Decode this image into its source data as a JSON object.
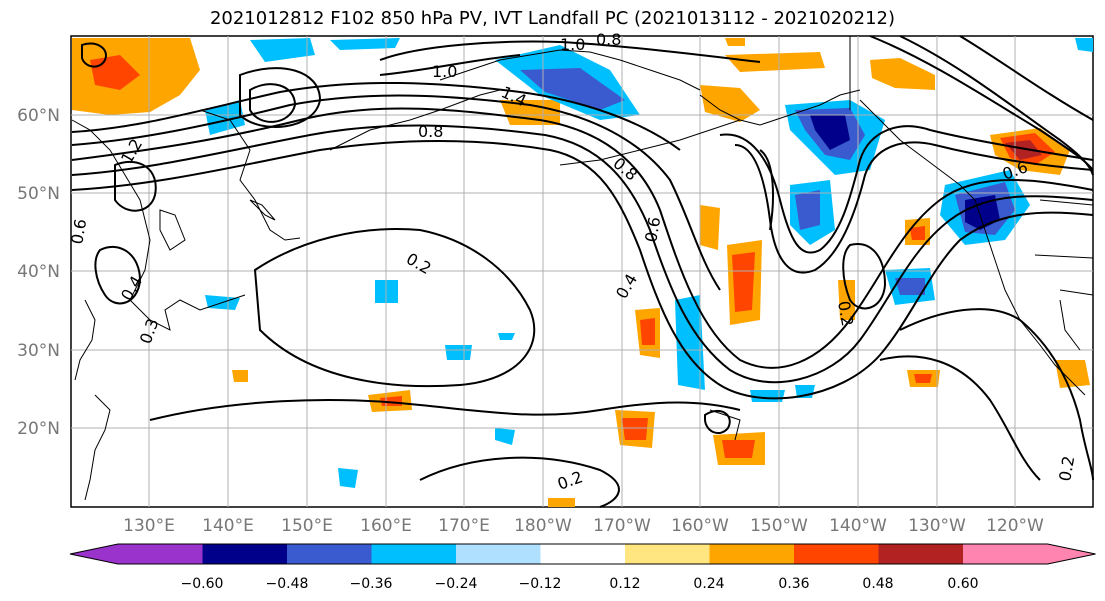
{
  "title": "2021012812 F102 850 hPa PV, IVT Landfall PC (2021013112 - 2021020212)",
  "lat_labels": [
    "60°N",
    "50°N",
    "40°N",
    "30°N",
    "20°N"
  ],
  "lon_labels": [
    "130°E",
    "140°E",
    "150°E",
    "160°E",
    "170°E",
    "180°W",
    "170°W",
    "160°W",
    "150°W",
    "140°W",
    "130°W",
    "120°W"
  ],
  "colorbar": {
    "ticks": [
      "−0.60",
      "−0.48",
      "−0.36",
      "−0.24",
      "−0.12",
      "0.12",
      "0.24",
      "0.36",
      "0.48",
      "0.60"
    ],
    "colors": [
      "#9933cc",
      "#00008b",
      "#3a5bcf",
      "#00bfff",
      "#b0e0ff",
      "#ffffff",
      "#ffe680",
      "#ffa500",
      "#ff4500",
      "#b22222",
      "#ff85b0"
    ]
  },
  "contour_labels": [
    "1.0",
    "0.8",
    "1.0",
    "0.8",
    "0.2",
    "0.4",
    "0.6",
    "0.2",
    "0.2",
    "0.4",
    "0.6",
    "0.3",
    "0.6",
    "0.8",
    "1.4",
    "1.2",
    "0.2"
  ],
  "colors": {
    "contour": "#000000",
    "grid": "#b0b0b0",
    "coast": "#000000"
  }
}
